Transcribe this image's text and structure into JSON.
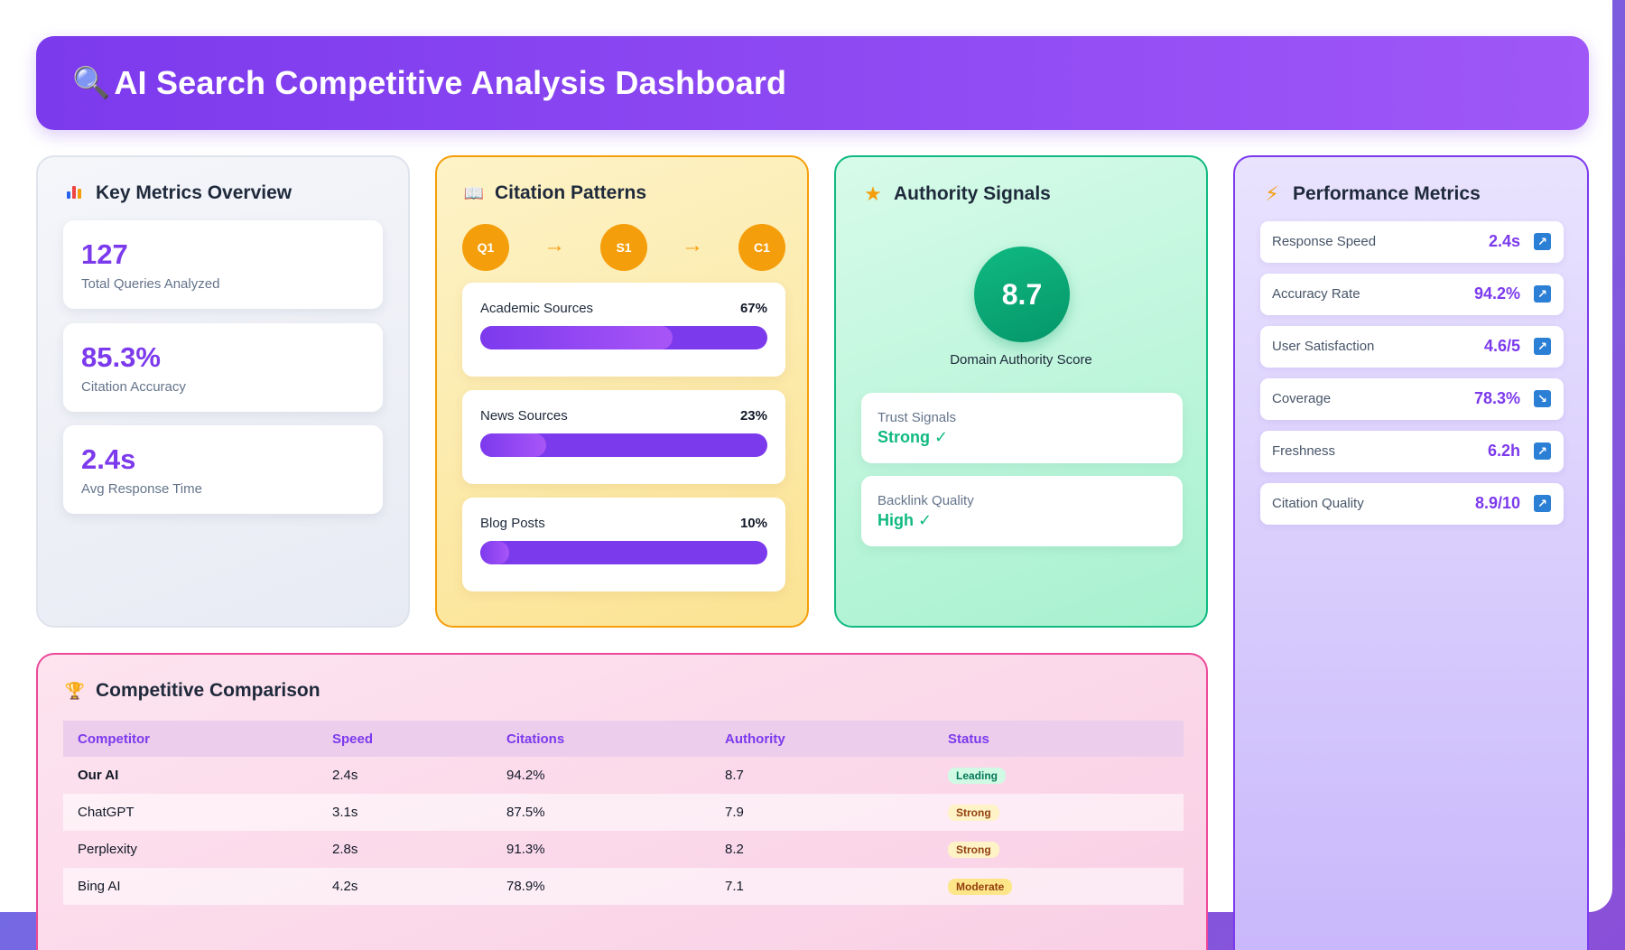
{
  "header": {
    "title": "AI Search Competitive Analysis Dashboard",
    "icon": "magnifier-icon"
  },
  "metrics": {
    "title": "Key Metrics Overview",
    "icon": "bar-chart-icon",
    "cards": [
      {
        "value": "127",
        "label": "Total Queries Analyzed"
      },
      {
        "value": "85.3%",
        "label": "Citation Accuracy"
      },
      {
        "value": "2.4s",
        "label": "Avg Response Time"
      }
    ]
  },
  "citation": {
    "title": "Citation Patterns",
    "icon": "book-icon",
    "flow": [
      "Q1",
      "S1",
      "C1"
    ],
    "arrow": "→",
    "sources": [
      {
        "name": "Academic Sources",
        "percent_label": "67%",
        "percent": 67
      },
      {
        "name": "News Sources",
        "percent_label": "23%",
        "percent": 23
      },
      {
        "name": "Blog Posts",
        "percent_label": "10%",
        "percent": 10
      }
    ]
  },
  "authority": {
    "title": "Authority Signals",
    "icon": "star-icon",
    "score": "8.7",
    "score_label": "Domain Authority Score",
    "signals": [
      {
        "label": "Trust Signals",
        "value": "Strong ✓"
      },
      {
        "label": "Backlink Quality",
        "value": "High ✓"
      }
    ]
  },
  "performance": {
    "title": "Performance Metrics",
    "icon": "lightning-icon",
    "rows": [
      {
        "label": "Response Speed",
        "value": "2.4s",
        "trend": "↗"
      },
      {
        "label": "Accuracy Rate",
        "value": "94.2%",
        "trend": "↗"
      },
      {
        "label": "User Satisfaction",
        "value": "4.6/5",
        "trend": "↗"
      },
      {
        "label": "Coverage",
        "value": "78.3%",
        "trend": "↘"
      },
      {
        "label": "Freshness",
        "value": "6.2h",
        "trend": "↗"
      },
      {
        "label": "Citation Quality",
        "value": "8.9/10",
        "trend": "↗"
      }
    ]
  },
  "comparison": {
    "title": "Competitive Comparison",
    "icon": "trophy-icon",
    "headers": [
      "Competitor",
      "Speed",
      "Citations",
      "Authority",
      "Status"
    ],
    "rows": [
      {
        "competitor": "Our AI",
        "speed": "2.4s",
        "citations": "94.2%",
        "authority": "8.7",
        "status": "Leading"
      },
      {
        "competitor": "ChatGPT",
        "speed": "3.1s",
        "citations": "87.5%",
        "authority": "7.9",
        "status": "Strong"
      },
      {
        "competitor": "Perplexity",
        "speed": "2.8s",
        "citations": "91.3%",
        "authority": "8.2",
        "status": "Strong"
      },
      {
        "competitor": "Bing AI",
        "speed": "4.2s",
        "citations": "78.9%",
        "authority": "7.1",
        "status": "Moderate"
      }
    ]
  },
  "colors": {
    "accent": "#7c3aed",
    "citation": "#f59e0b",
    "authority": "#10b981",
    "comparison": "#ec4899",
    "trend_icon": "#2b7fd4"
  }
}
